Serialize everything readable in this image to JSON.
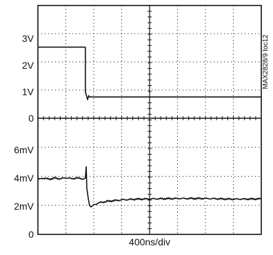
{
  "chart_data": [
    {
      "type": "line",
      "title": "",
      "xlabel": "400ns/div",
      "ylabel": "",
      "x_divisions": 8,
      "ylim": [
        0,
        4.25
      ],
      "ticks": [
        {
          "label": "3V",
          "value": 3
        },
        {
          "label": "2V",
          "value": 2
        },
        {
          "label": "1V",
          "value": 1
        },
        {
          "label": "0",
          "value": 0
        }
      ],
      "grid": "dotted",
      "series": [
        {
          "x": [
            0,
            1.7,
            1.7,
            1.78,
            1.82,
            1.86,
            8
          ],
          "y": [
            2.68,
            2.68,
            1.0,
            0.7,
            0.85,
            0.8,
            0.8
          ]
        }
      ]
    },
    {
      "type": "line",
      "title": "",
      "xlabel": "400ns/div",
      "ylabel": "",
      "x_divisions": 8,
      "ylim": [
        0,
        8.25
      ],
      "ticks": [
        {
          "label": "6mV",
          "value": 6
        },
        {
          "label": "4mV",
          "value": 4
        },
        {
          "label": "2mV",
          "value": 2
        },
        {
          "label": "0",
          "value": 0
        }
      ],
      "grid": "dotted",
      "series": [
        {
          "x": [
            0,
            0.2,
            0.4,
            0.6,
            0.8,
            1.0,
            1.2,
            1.4,
            1.62,
            1.7,
            1.73,
            1.75,
            1.8,
            1.85,
            1.9,
            2.0,
            2.2,
            2.5,
            3.0,
            3.5,
            4.0,
            5.0,
            6.0,
            7.0,
            8.0
          ],
          "y": [
            3.9,
            4.0,
            3.92,
            4.0,
            3.95,
            4.02,
            3.96,
            4.0,
            3.92,
            4.0,
            4.8,
            3.3,
            2.6,
            2.05,
            1.95,
            2.1,
            2.25,
            2.35,
            2.45,
            2.5,
            2.52,
            2.55,
            2.55,
            2.5,
            2.52
          ]
        }
      ]
    }
  ],
  "side_caption": "MAX2828/9 toc12"
}
